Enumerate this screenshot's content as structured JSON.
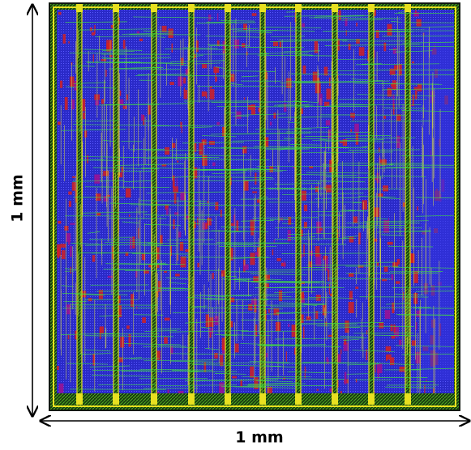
{
  "labels": {
    "vertical": "1 mm",
    "horizontal": "1 mm"
  }
}
